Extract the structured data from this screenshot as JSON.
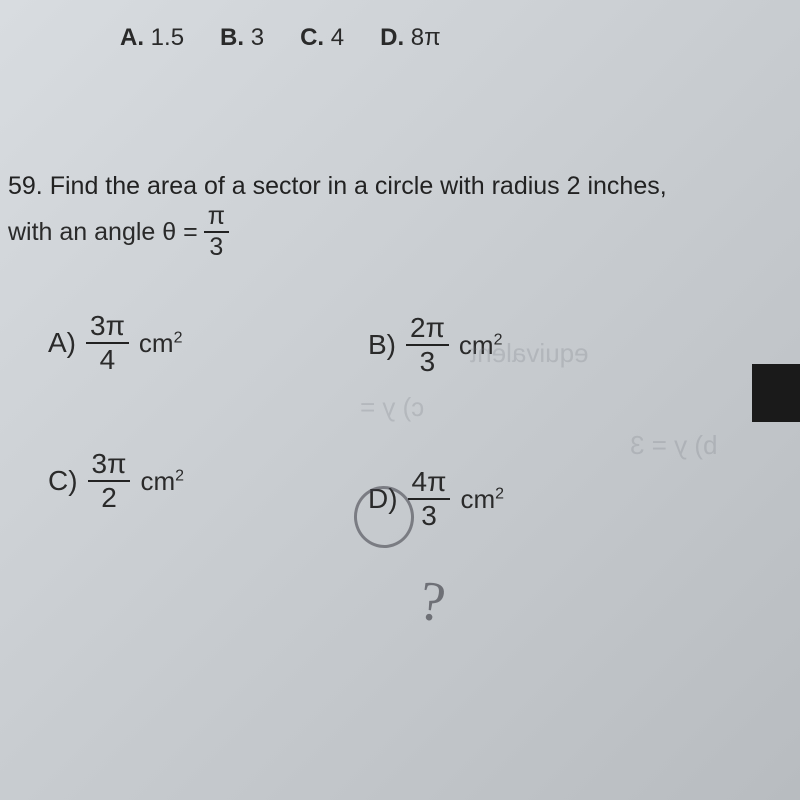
{
  "top": {
    "A": {
      "letter": "A.",
      "val": "1.5"
    },
    "B": {
      "letter": "B.",
      "val": "3"
    },
    "C": {
      "letter": "C.",
      "val": "4"
    },
    "D": {
      "letter": "D.",
      "val": "8π"
    }
  },
  "q59": {
    "number": "59.",
    "stem1": "Find the area of a sector in a circle with radius 2 inches,",
    "stem2a": "with an angle θ =",
    "theta_num": "π",
    "theta_den": "3",
    "unit": "cm",
    "sup": "2",
    "A": {
      "letter": "A)",
      "num": "3π",
      "den": "4"
    },
    "B": {
      "letter": "B)",
      "num": "2π",
      "den": "3"
    },
    "C": {
      "letter": "C)",
      "num": "3π",
      "den": "2"
    },
    "D": {
      "letter": "D)",
      "num": "4π",
      "den": "3"
    }
  },
  "hand": {
    "q": "?"
  },
  "ghost": {
    "g1": "equivalent",
    "g2": "b) y = 3",
    "g3": "c) y ="
  },
  "colors": {
    "text": "#2a2a2a",
    "pen": "rgba(60,60,70,0.55)",
    "bg_from": "#d8dce0",
    "bg_to": "#b8bcc0"
  }
}
